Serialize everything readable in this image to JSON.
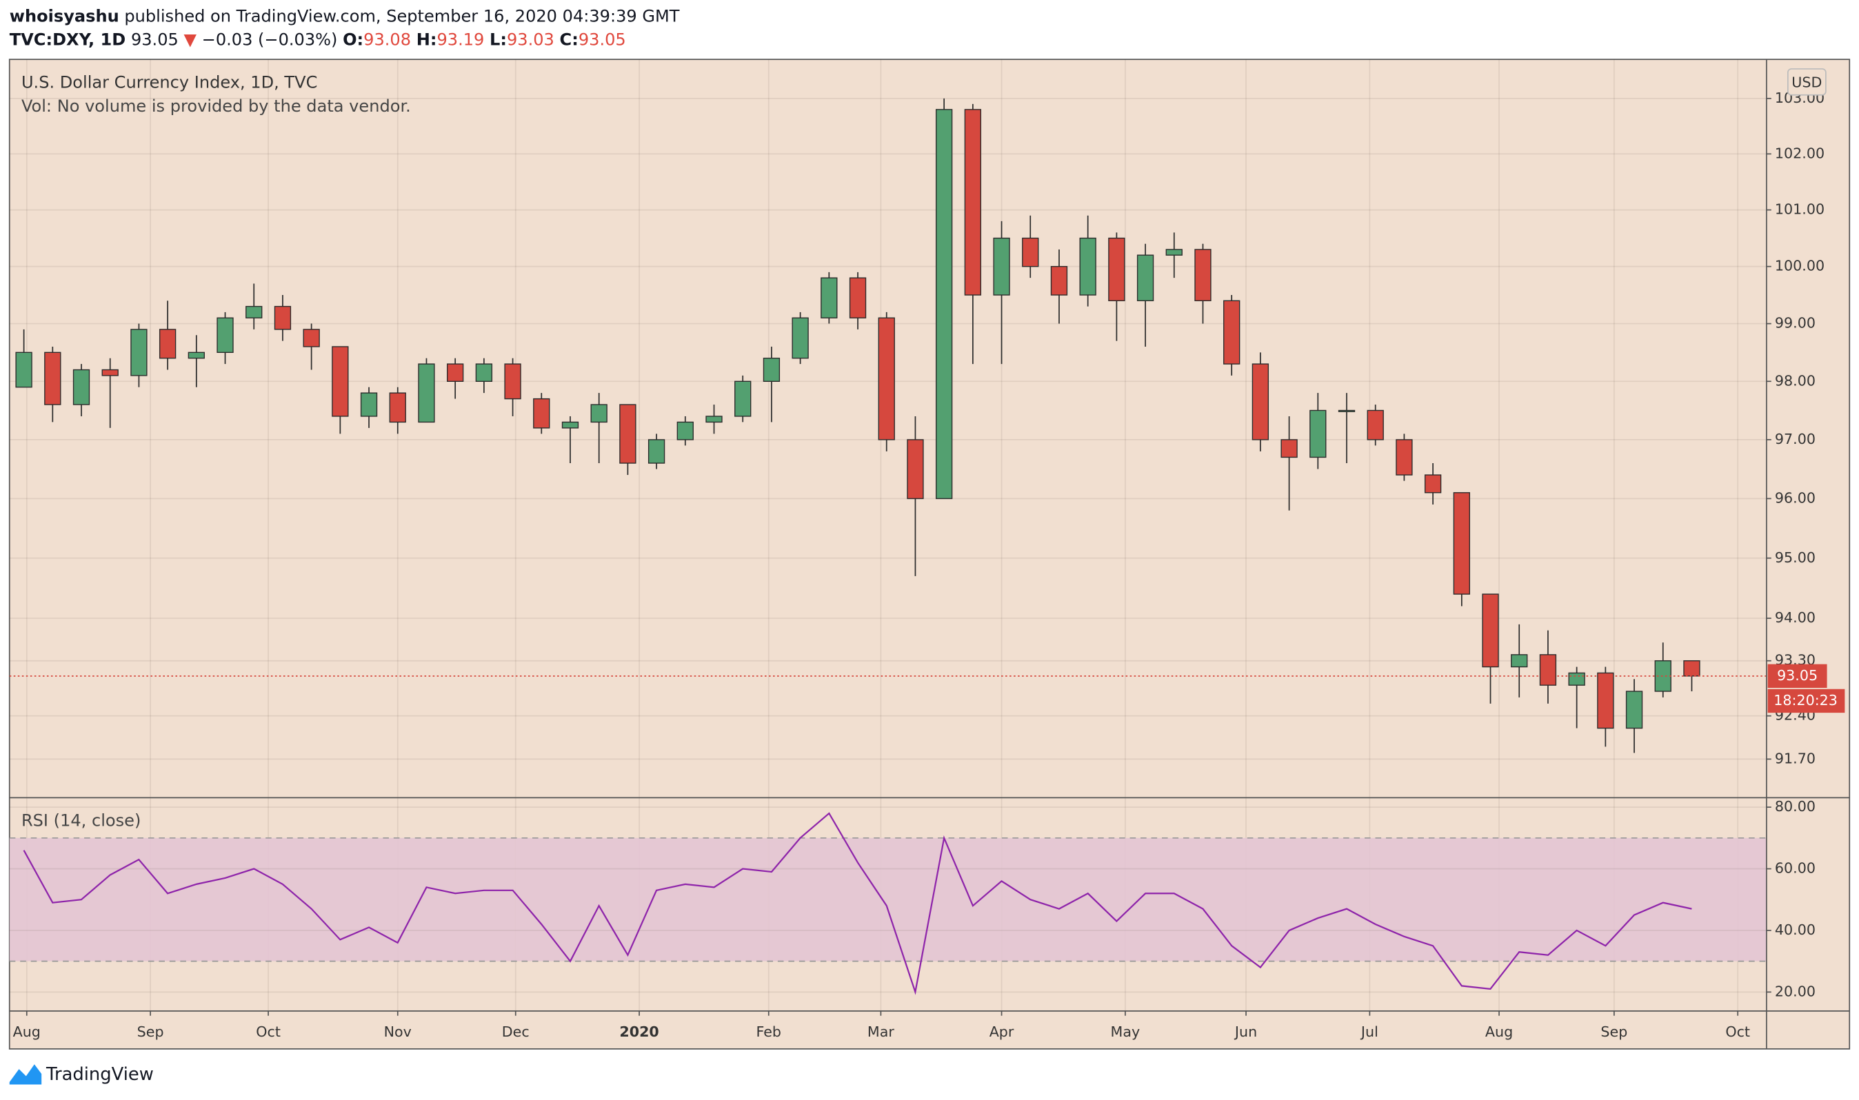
{
  "header": {
    "author": "whoisyashu",
    "published": "published on TradingView.com, September 16, 2020 04:39:39 GMT",
    "symbol": "TVC:DXY, 1D",
    "price": "93.05",
    "change_arrow": "▼",
    "change": "−0.03 (−0.03%)",
    "open_label": "O:",
    "open": "93.08",
    "high_label": "H:",
    "high": "93.19",
    "low_label": "L:",
    "low": "93.03",
    "close_label": "C:",
    "close": "93.05"
  },
  "footer": {
    "brand": "TradingView"
  },
  "chart_data": [
    {
      "type": "candlestick",
      "title": "U.S. Dollar Currency Index, 1D, TVC",
      "subtitle": "Vol: No volume is provided by the data vendor.",
      "axis_unit": "USD",
      "log_scale": true,
      "grid": true,
      "up_color": "#53a070",
      "down_color": "#d6483e",
      "open": [
        97.9,
        98.5,
        97.6,
        98.2,
        98.1,
        98.9,
        98.4,
        98.5,
        99.1,
        99.3,
        98.9,
        98.6,
        97.4,
        97.8,
        97.3,
        98.3,
        98.0,
        98.3,
        97.7,
        97.2,
        97.3,
        97.6,
        96.6,
        97.0,
        97.3,
        97.4,
        98.0,
        98.4,
        99.1,
        99.8,
        99.1,
        97.0,
        96.0,
        102.8,
        99.5,
        100.5,
        100.0,
        99.5,
        100.5,
        99.4,
        100.2,
        100.3,
        99.4,
        98.3,
        97.0,
        96.7,
        97.5,
        97.5,
        97.0,
        96.4,
        96.1,
        94.4,
        93.2,
        93.4,
        92.9,
        93.1,
        92.2,
        92.8,
        93.3
      ],
      "high": [
        98.9,
        98.6,
        98.3,
        98.4,
        99.0,
        99.4,
        98.8,
        99.2,
        99.7,
        99.5,
        99.0,
        98.6,
        97.9,
        97.9,
        98.4,
        98.4,
        98.4,
        98.4,
        97.8,
        97.4,
        97.8,
        97.6,
        97.1,
        97.4,
        97.6,
        98.1,
        98.6,
        99.2,
        99.9,
        99.9,
        99.2,
        97.4,
        103.0,
        102.9,
        100.8,
        100.9,
        100.3,
        100.9,
        100.6,
        100.4,
        100.6,
        100.4,
        99.5,
        98.5,
        97.4,
        97.8,
        97.8,
        97.6,
        97.1,
        96.6,
        96.1,
        94.4,
        93.9,
        93.8,
        93.2,
        93.2,
        93.0,
        93.6,
        93.3
      ],
      "low": [
        97.9,
        97.3,
        97.4,
        97.2,
        97.9,
        98.2,
        97.9,
        98.3,
        98.9,
        98.7,
        98.2,
        97.1,
        97.2,
        97.1,
        97.3,
        97.7,
        97.8,
        97.4,
        97.1,
        96.6,
        96.6,
        96.4,
        96.5,
        96.9,
        97.1,
        97.3,
        97.3,
        98.3,
        99.0,
        98.9,
        96.8,
        94.7,
        96.0,
        98.3,
        98.3,
        99.8,
        99.0,
        99.3,
        98.7,
        98.6,
        99.8,
        99.0,
        98.1,
        96.8,
        95.8,
        96.5,
        96.6,
        96.9,
        96.3,
        95.9,
        94.2,
        92.6,
        92.7,
        92.6,
        92.2,
        91.9,
        91.8,
        92.7,
        92.8
      ],
      "close": [
        98.5,
        97.6,
        98.2,
        98.1,
        98.9,
        98.4,
        98.5,
        99.1,
        99.3,
        98.9,
        98.6,
        97.4,
        97.8,
        97.3,
        98.3,
        98.0,
        98.3,
        97.7,
        97.2,
        97.3,
        97.6,
        96.6,
        97.0,
        97.3,
        97.4,
        98.0,
        98.4,
        99.1,
        99.8,
        99.1,
        97.0,
        96.0,
        102.8,
        99.5,
        100.5,
        100.0,
        99.5,
        100.5,
        99.4,
        100.2,
        100.3,
        99.4,
        98.3,
        97.0,
        96.7,
        97.5,
        97.5,
        97.0,
        96.4,
        96.1,
        94.4,
        93.2,
        93.4,
        92.9,
        93.1,
        92.2,
        92.8,
        93.3,
        93.05
      ],
      "last_price": 93.05,
      "countdown": "18:20:23",
      "xlim": [
        -0.5,
        60.6
      ],
      "xticks": [
        {
          "value": 0.1,
          "label": "Aug"
        },
        {
          "value": 4.4,
          "label": "Sep"
        },
        {
          "value": 8.5,
          "label": "Oct"
        },
        {
          "value": 13.0,
          "label": "Nov"
        },
        {
          "value": 17.1,
          "label": "Dec"
        },
        {
          "value": 21.4,
          "label": "2020"
        },
        {
          "value": 25.9,
          "label": "Feb"
        },
        {
          "value": 29.8,
          "label": "Mar"
        },
        {
          "value": 34.0,
          "label": "Apr"
        },
        {
          "value": 38.3,
          "label": "May"
        },
        {
          "value": 42.5,
          "label": "Jun"
        },
        {
          "value": 46.8,
          "label": "Jul"
        },
        {
          "value": 51.3,
          "label": "Aug"
        },
        {
          "value": 55.3,
          "label": "Sep"
        },
        {
          "value": 59.6,
          "label": "Oct"
        }
      ],
      "ylim": [
        91.08,
        103.71
      ],
      "yticks": [
        {
          "value": 91.7,
          "label": "91.70"
        },
        {
          "value": 92.4,
          "label": "92.40"
        },
        {
          "value": 93.3,
          "label": "93.30"
        },
        {
          "value": 94,
          "label": "94.00"
        },
        {
          "value": 95,
          "label": "95.00"
        },
        {
          "value": 96,
          "label": "96.00"
        },
        {
          "value": 97,
          "label": "97.00"
        },
        {
          "value": 98,
          "label": "98.00"
        },
        {
          "value": 99,
          "label": "99.00"
        },
        {
          "value": 100,
          "label": "100.00"
        },
        {
          "value": 101,
          "label": "101.00"
        },
        {
          "value": 102,
          "label": "102.00"
        },
        {
          "value": 103,
          "label": "103.00"
        }
      ]
    },
    {
      "type": "line",
      "title": "RSI (14, close)",
      "color": "#8e24aa",
      "band": [
        30,
        70
      ],
      "band_color": "#e3c4d3",
      "values": [
        66,
        49,
        50,
        58,
        63,
        52,
        55,
        57,
        60,
        55,
        47,
        37,
        41,
        36,
        54,
        52,
        53,
        53,
        42,
        30,
        48,
        32,
        53,
        55,
        54,
        60,
        59,
        70,
        78,
        62,
        48,
        20,
        70,
        48,
        56,
        50,
        47,
        52,
        43,
        52,
        52,
        47,
        35,
        28,
        40,
        44,
        47,
        42,
        38,
        35,
        22,
        21,
        33,
        32,
        40,
        35,
        45,
        49,
        47
      ],
      "xlim": [
        -0.5,
        60.6
      ],
      "ylim": [
        13.85,
        83.08
      ],
      "yticks": [
        {
          "value": 20,
          "label": "20.00"
        },
        {
          "value": 40,
          "label": "40.00"
        },
        {
          "value": 60,
          "label": "60.00"
        },
        {
          "value": 80,
          "label": "80.00"
        }
      ]
    }
  ]
}
